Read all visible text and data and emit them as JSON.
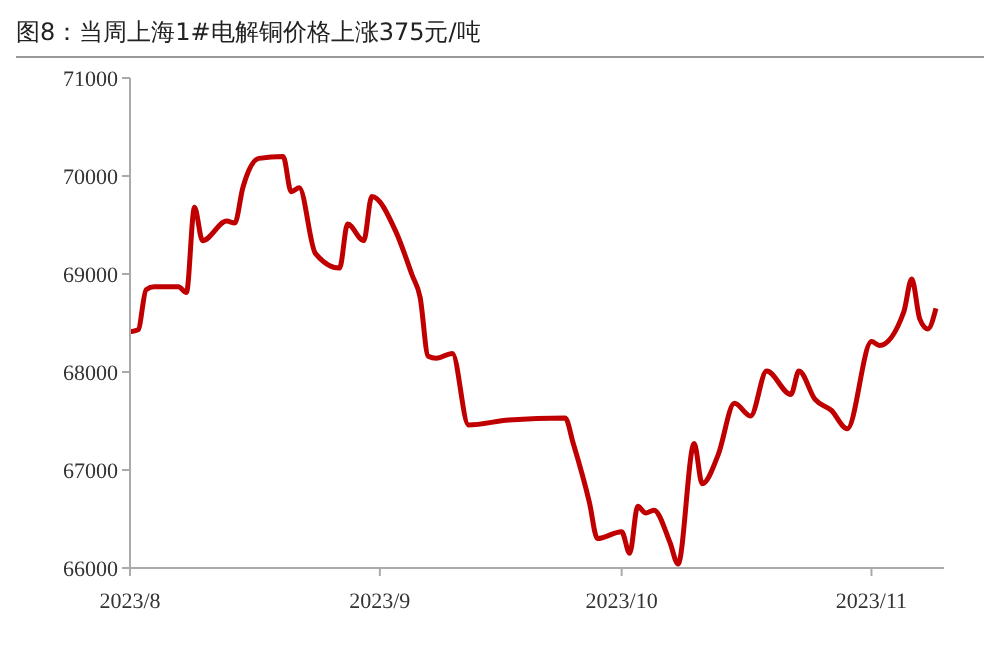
{
  "chart_data": {
    "type": "line",
    "title": "图8：当周上海1#电解铜价格上涨375元/吨",
    "x": [
      "2023-08-01",
      "2023-08-02",
      "2023-08-03",
      "2023-08-04",
      "2023-08-07",
      "2023-08-08",
      "2023-08-09",
      "2023-08-10",
      "2023-08-13",
      "2023-08-14",
      "2023-08-15",
      "2023-08-17",
      "2023-08-20",
      "2023-08-21",
      "2023-08-22",
      "2023-08-24",
      "2023-08-27",
      "2023-08-28",
      "2023-08-30",
      "2023-08-31",
      "2023-09-03",
      "2023-09-05",
      "2023-09-06",
      "2023-09-07",
      "2023-09-08",
      "2023-09-10",
      "2023-09-12",
      "2023-09-17",
      "2023-09-24",
      "2023-09-25",
      "2023-09-27",
      "2023-09-28",
      "2023-10-01",
      "2023-10-02",
      "2023-10-03",
      "2023-10-04",
      "2023-10-05",
      "2023-10-07",
      "2023-10-08",
      "2023-10-10",
      "2023-10-11",
      "2023-10-13",
      "2023-10-15",
      "2023-10-17",
      "2023-10-19",
      "2023-10-22",
      "2023-10-23",
      "2023-10-25",
      "2023-10-27",
      "2023-10-29",
      "2023-11-01",
      "2023-11-02",
      "2023-11-05",
      "2023-11-06",
      "2023-11-07",
      "2023-11-08",
      "2023-11-09"
    ],
    "series": [
      {
        "color": "#c00000",
        "values": [
          68410,
          68430,
          68840,
          68870,
          68870,
          68810,
          69680,
          69340,
          69540,
          69520,
          69880,
          70180,
          70200,
          69840,
          69880,
          69210,
          69060,
          69510,
          69340,
          69790,
          69430,
          68990,
          68760,
          68160,
          68140,
          68190,
          67460,
          67510,
          67530,
          67270,
          66670,
          66300,
          66370,
          66150,
          66630,
          66560,
          66590,
          66260,
          66040,
          67270,
          66860,
          67160,
          67680,
          67550,
          68010,
          67770,
          68010,
          67720,
          67610,
          67420,
          68310,
          68270,
          68610,
          68950,
          68540,
          68440,
          68650
        ]
      }
    ],
    "xlim": [
      "2023-08-01",
      "2023-11-10"
    ],
    "xticks": [
      {
        "value": "2023-08-01",
        "label": "2023/8"
      },
      {
        "value": "2023-09-01",
        "label": "2023/9"
      },
      {
        "value": "2023-10-01",
        "label": "2023/10"
      },
      {
        "value": "2023-11-01",
        "label": "2023/11"
      }
    ],
    "ylim": [
      66000,
      71000
    ],
    "yticks": [
      66000,
      67000,
      68000,
      69000,
      70000,
      71000
    ],
    "grid": false,
    "legend": false,
    "marker": "none",
    "line_style": "solid"
  }
}
